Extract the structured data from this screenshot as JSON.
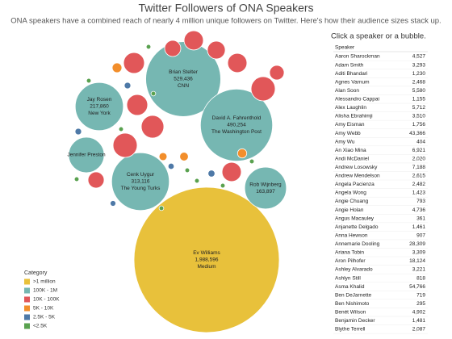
{
  "chart_data": {
    "type": "bubble",
    "title": "Twitter Followers of ONA Speakers",
    "subtitle": "ONA speakers have a combined reach of nearly 4 million unique followers on Twitter. Here's how their audience sizes stack up.",
    "legend_title": "Category",
    "legend_position": "lower left",
    "series": [
      {
        "name": ">1 million",
        "color": "#e8c13b",
        "labels": [
          "Ev Williams"
        ],
        "values": [
          1988596
        ],
        "value_labels": [
          "1,988,596"
        ],
        "orgs": [
          "Medium"
        ]
      },
      {
        "name": "100K - 1M",
        "color": "#76b7b2",
        "labels": [
          "Brian Stelter",
          "David A. Fahrenthold",
          "Cenk Uygur",
          "Jay Rosen",
          "Jennifer Preston",
          "Rob Wijnberg"
        ],
        "values": [
          529436,
          490254,
          313116,
          217860,
          119000,
          163897
        ],
        "value_labels": [
          "529,436",
          "490,254",
          "313,116",
          "217,860",
          null,
          "163,897"
        ],
        "orgs": [
          "CNN",
          "The Washington Post",
          "The Young Turks",
          "New York",
          null,
          null
        ]
      },
      {
        "name": "10K - 100K",
        "color": "#e15759",
        "labels": [
          null,
          null,
          null,
          null,
          null,
          null,
          null,
          null,
          null,
          null,
          null,
          null
        ],
        "values": [
          41000,
          24500,
          35000,
          30000,
          35000,
          55000,
          41000,
          48000,
          55000,
          24500,
          35000,
          20000
        ]
      },
      {
        "name": "5K - 10K",
        "color": "#f28e2b",
        "labels": [
          null,
          null,
          null,
          null
        ],
        "values": [
          8800,
          7000,
          6000,
          8000
        ]
      },
      {
        "name": "2.5K - 5K",
        "color": "#4e79a7",
        "labels": [
          null,
          null,
          null,
          null,
          null
        ],
        "values": [
          4000,
          4500,
          3500,
          3000,
          4000
        ]
      },
      {
        "name": "<2.5K",
        "color": "#59a14f",
        "labels": [
          null,
          null,
          null,
          null,
          null,
          null,
          null,
          null,
          null,
          null
        ],
        "values": [
          2000,
          2000,
          2000,
          2000,
          2000,
          2000,
          2000,
          2000,
          2000,
          2000
        ]
      }
    ]
  },
  "header": {
    "prompt": "Click a speaker or a bubble."
  },
  "table": {
    "header": [
      "Speaker"
    ],
    "rows": [
      [
        "Aaron Sharockman",
        "4,527"
      ],
      [
        "Adam Smith",
        "3,293"
      ],
      [
        "Aditi Bhandari",
        "1,230"
      ],
      [
        "Agnes Varnum",
        "2,468"
      ],
      [
        "Alan Soon",
        "5,580"
      ],
      [
        "Alessandro Cappai",
        "1,155"
      ],
      [
        "Alex Laughlin",
        "5,712"
      ],
      [
        "Alisha Ebrahimji",
        "3,510"
      ],
      [
        "Amy Eisman",
        "1,756"
      ],
      [
        "Amy Webb",
        "43,366"
      ],
      [
        "Amy Wu",
        "404"
      ],
      [
        "An Xiao Mina",
        "6,921"
      ],
      [
        "Andi McDaniel",
        "2,020"
      ],
      [
        "Andrew Losowsky",
        "7,188"
      ],
      [
        "Andrew Mendelson",
        "2,615"
      ],
      [
        "Angela Pacienza",
        "2,482"
      ],
      [
        "Angela Wong",
        "1,423"
      ],
      [
        "Angie Chuang",
        "793"
      ],
      [
        "Angie Holan",
        "4,736"
      ],
      [
        "Angus Macauley",
        "361"
      ],
      [
        "Anjanette Delgado",
        "1,461"
      ],
      [
        "Anna Hewson",
        "907"
      ],
      [
        "Annemarie Dooling",
        "28,309"
      ],
      [
        "Ariana Tobin",
        "3,309"
      ],
      [
        "Aron Pilhofer",
        "18,124"
      ],
      [
        "Ashley Alvarado",
        "3,221"
      ],
      [
        "Ashlyn Still",
        "818"
      ],
      [
        "Asma Khalid",
        "54,766"
      ],
      [
        "Ben DeJarnette",
        "719"
      ],
      [
        "Ben Nishimoto",
        "295"
      ],
      [
        "Benét Wilson",
        "4,902"
      ],
      [
        "Benjamin Decker",
        "1,481"
      ],
      [
        "Blythe Terrell",
        "2,087"
      ]
    ]
  }
}
